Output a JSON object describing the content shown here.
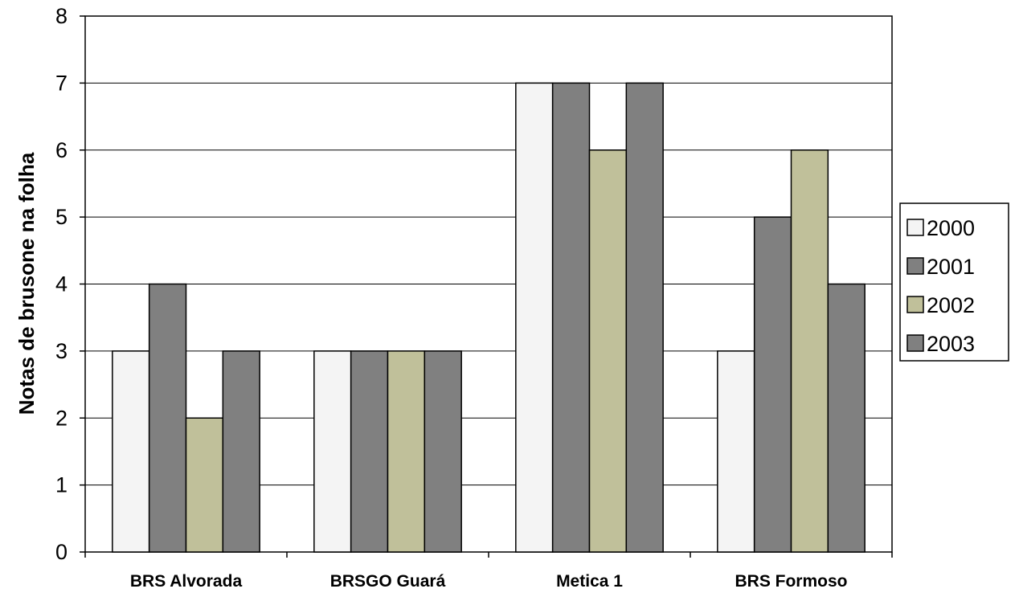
{
  "chart_data": {
    "type": "bar",
    "title": "",
    "xlabel": "",
    "ylabel": "Notas de brusone na folha",
    "ylim": [
      0,
      8
    ],
    "yticks": [
      0,
      1,
      2,
      3,
      4,
      5,
      6,
      7,
      8
    ],
    "grid": true,
    "legend_position": "right",
    "categories": [
      "BRS Alvorada",
      "BRSGO Guará",
      "Metica 1",
      "BRS Formoso"
    ],
    "series": [
      {
        "name": "2000",
        "color": "#f4f4f4",
        "values": [
          3,
          3,
          7,
          3
        ]
      },
      {
        "name": "2001",
        "color": "#808080",
        "values": [
          4,
          3,
          7,
          5
        ]
      },
      {
        "name": "2002",
        "color": "#c0c09a",
        "values": [
          2,
          3,
          6,
          6
        ]
      },
      {
        "name": "2003",
        "color": "#808080",
        "values": [
          3,
          3,
          7,
          4
        ]
      }
    ]
  }
}
